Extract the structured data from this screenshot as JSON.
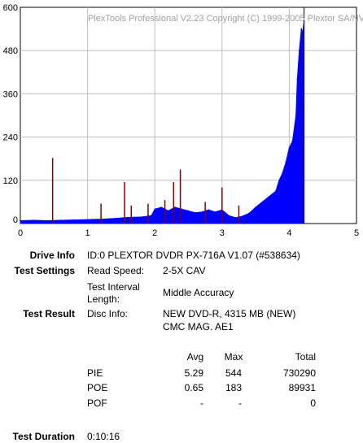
{
  "chart_data": {
    "type": "bar",
    "title": "PlexTools Professional V2.23 Copyright (C) 1999-2005 Plextor SA/NV",
    "xlabel": "",
    "ylabel": "",
    "xlim": [
      0,
      5
    ],
    "ylim": [
      0,
      600
    ],
    "x_ticks": [
      "0",
      "1",
      "2",
      "3",
      "4",
      "5"
    ],
    "y_ticks": [
      "0",
      "120",
      "240",
      "360",
      "480",
      "600"
    ],
    "grid": true,
    "series": [
      {
        "name": "PIE",
        "color": "#0000ff",
        "x": [
          0.0,
          0.2,
          0.4,
          0.6,
          0.8,
          1.0,
          1.2,
          1.4,
          1.6,
          1.8,
          1.95,
          2.0,
          2.1,
          2.2,
          2.3,
          2.4,
          2.5,
          2.6,
          2.7,
          2.8,
          2.9,
          3.0,
          3.1,
          3.2,
          3.3,
          3.4,
          3.5,
          3.6,
          3.7,
          3.8,
          3.85,
          3.9,
          3.95,
          4.0,
          4.05,
          4.1,
          4.12,
          4.15,
          4.18,
          4.2,
          4.22
        ],
        "values": [
          8,
          9,
          8,
          9,
          10,
          11,
          12,
          14,
          17,
          18,
          22,
          40,
          45,
          35,
          45,
          40,
          35,
          30,
          32,
          38,
          32,
          38,
          22,
          16,
          20,
          28,
          45,
          60,
          75,
          90,
          120,
          140,
          170,
          210,
          230,
          300,
          400,
          480,
          540,
          530,
          560
        ]
      },
      {
        "name": "POE",
        "color": "#800000",
        "x": [
          0.48,
          1.2,
          1.55,
          1.65,
          1.9,
          2.15,
          2.28,
          2.38,
          2.75,
          3.0,
          3.25
        ],
        "values": [
          182,
          55,
          115,
          50,
          55,
          65,
          115,
          150,
          60,
          100,
          50
        ]
      }
    ]
  },
  "info": {
    "drive_info_label": "Drive Info",
    "drive_info_value": "ID:0 PLEXTOR DVDR PX-716A V1.07 (#538634)",
    "test_settings_label": "Test Settings",
    "read_speed_label": "Read Speed:",
    "read_speed_value": "2-5X CAV",
    "interval_label_1": "Test Interval",
    "interval_label_2": "Length:",
    "interval_value": "Middle Accuracy",
    "test_result_label": "Test Result",
    "disc_info_label": "Disc Info:",
    "disc_info_line1": "NEW DVD-R, 4315 MB (NEW)",
    "disc_info_line2": "CMC MAG. AE1",
    "duration_label": "Test Duration",
    "duration_value": "0:10:16"
  },
  "results": {
    "headers": [
      "Avg",
      "Max",
      "Total"
    ],
    "rows": [
      {
        "name": "PIE",
        "avg": "5.29",
        "max": "544",
        "total": "730290"
      },
      {
        "name": "POE",
        "avg": "0.65",
        "max": "183",
        "total": "89931"
      },
      {
        "name": "POF",
        "avg": "-",
        "max": "-",
        "total": "0"
      }
    ]
  }
}
